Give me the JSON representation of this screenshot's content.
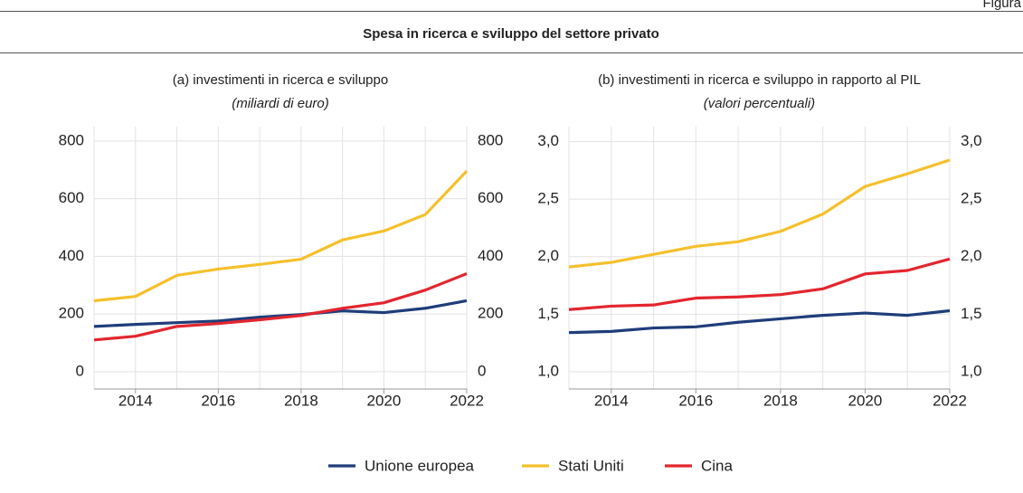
{
  "label": "Figura",
  "title": "Spesa in ricerca e sviluppo del settore privato",
  "chart_data": [
    {
      "type": "line",
      "title": "(a) investimenti in ricerca e sviluppo",
      "subtitle": "(miliardi di euro)",
      "x": [
        2013,
        2014,
        2015,
        2016,
        2017,
        2018,
        2019,
        2020,
        2021,
        2022
      ],
      "xlim": [
        2013,
        2022
      ],
      "xticks": [
        2014,
        2016,
        2018,
        2020,
        2022
      ],
      "ylim": [
        -60,
        850
      ],
      "yticks": [
        0,
        200,
        400,
        600,
        800
      ],
      "grid": true,
      "series": [
        {
          "name": "Unione europea",
          "color": "#1f3d7a",
          "values": [
            157,
            164,
            170,
            176,
            189,
            198,
            211,
            205,
            220,
            246
          ]
        },
        {
          "name": "Stati Uniti",
          "color": "#f5c02c",
          "values": [
            246,
            261,
            334,
            356,
            372,
            390,
            457,
            488,
            545,
            696
          ]
        },
        {
          "name": "Cina",
          "color": "#e3262f",
          "values": [
            110,
            123,
            157,
            167,
            180,
            195,
            220,
            239,
            283,
            340
          ]
        }
      ]
    },
    {
      "type": "line",
      "title": "(b) investimenti in ricerca e sviluppo in rapporto al PIL",
      "subtitle": "(valori percentuali)",
      "x": [
        2013,
        2014,
        2015,
        2016,
        2017,
        2018,
        2019,
        2020,
        2021,
        2022
      ],
      "xlim": [
        2013,
        2022
      ],
      "xticks": [
        2014,
        2016,
        2018,
        2020,
        2022
      ],
      "ylim": [
        0.85,
        3.13
      ],
      "yticks": [
        {
          "value": 1,
          "label": "1,0"
        },
        {
          "value": 1.5,
          "label": "1,5"
        },
        {
          "value": 2,
          "label": "2,0"
        },
        {
          "value": 2.5,
          "label": "2,5"
        },
        {
          "value": 3,
          "label": "3,0"
        }
      ],
      "grid": true,
      "series": [
        {
          "name": "Unione europea",
          "color": "#1f3d7a",
          "values": [
            1.34,
            1.35,
            1.38,
            1.39,
            1.43,
            1.46,
            1.49,
            1.51,
            1.49,
            1.53
          ]
        },
        {
          "name": "Stati Uniti",
          "color": "#f5c02c",
          "values": [
            1.91,
            1.95,
            2.02,
            2.09,
            2.13,
            2.22,
            2.37,
            2.61,
            2.72,
            2.84
          ]
        },
        {
          "name": "Cina",
          "color": "#e3262f",
          "values": [
            1.54,
            1.57,
            1.58,
            1.64,
            1.65,
            1.67,
            1.72,
            1.85,
            1.88,
            1.98
          ]
        }
      ]
    }
  ]
}
